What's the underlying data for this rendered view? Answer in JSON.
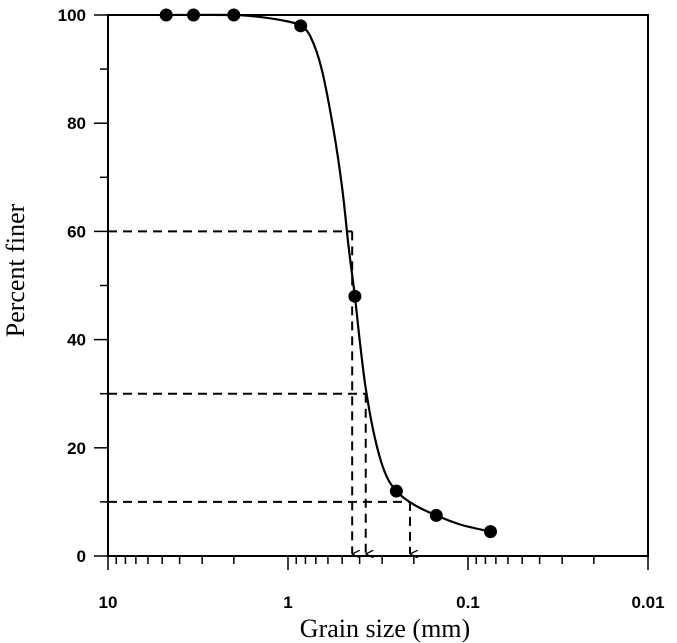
{
  "chart_data": {
    "type": "scatter",
    "title": "",
    "xlabel": "Grain size (mm)",
    "ylabel": "Percent finer",
    "x_scale": "log",
    "x_reversed": true,
    "xlim": [
      10,
      0.01
    ],
    "ylim": [
      0,
      100
    ],
    "x_ticks": [
      {
        "value": 10,
        "label": "10"
      },
      {
        "value": 1,
        "label": "1"
      },
      {
        "value": 0.1,
        "label": "0.1"
      },
      {
        "value": 0.01,
        "label": "0.01"
      }
    ],
    "y_ticks": [
      {
        "value": 0,
        "label": "0"
      },
      {
        "value": 20,
        "label": "20"
      },
      {
        "value": 40,
        "label": "40"
      },
      {
        "value": 60,
        "label": "60"
      },
      {
        "value": 80,
        "label": "80"
      },
      {
        "value": 100,
        "label": "100"
      }
    ],
    "grid": false,
    "legend": "none",
    "series": [
      {
        "points": [
          {
            "x": 4.75,
            "y": 100
          },
          {
            "x": 3.35,
            "y": 100
          },
          {
            "x": 2.0,
            "y": 100
          },
          {
            "x": 0.85,
            "y": 98
          },
          {
            "x": 0.425,
            "y": 48
          },
          {
            "x": 0.25,
            "y": 12
          },
          {
            "x": 0.15,
            "y": 7.5
          },
          {
            "x": 0.075,
            "y": 4.5
          }
        ]
      }
    ],
    "fit_curve": [
      {
        "x": 4.75,
        "y": 100
      },
      {
        "x": 2.0,
        "y": 100
      },
      {
        "x": 1.4,
        "y": 99.6
      },
      {
        "x": 1.0,
        "y": 98.8
      },
      {
        "x": 0.85,
        "y": 98
      },
      {
        "x": 0.75,
        "y": 96
      },
      {
        "x": 0.65,
        "y": 90
      },
      {
        "x": 0.56,
        "y": 79
      },
      {
        "x": 0.5,
        "y": 68
      },
      {
        "x": 0.46,
        "y": 57
      },
      {
        "x": 0.425,
        "y": 48
      },
      {
        "x": 0.4,
        "y": 40
      },
      {
        "x": 0.37,
        "y": 31
      },
      {
        "x": 0.33,
        "y": 22
      },
      {
        "x": 0.29,
        "y": 15.5
      },
      {
        "x": 0.25,
        "y": 12
      },
      {
        "x": 0.2,
        "y": 9.5
      },
      {
        "x": 0.15,
        "y": 7.5
      },
      {
        "x": 0.11,
        "y": 5.8
      },
      {
        "x": 0.075,
        "y": 4.5
      }
    ],
    "reference_lines": [
      {
        "y": 60,
        "x": 0.44
      },
      {
        "y": 30,
        "x": 0.37
      },
      {
        "y": 10,
        "x": 0.21
      }
    ]
  }
}
